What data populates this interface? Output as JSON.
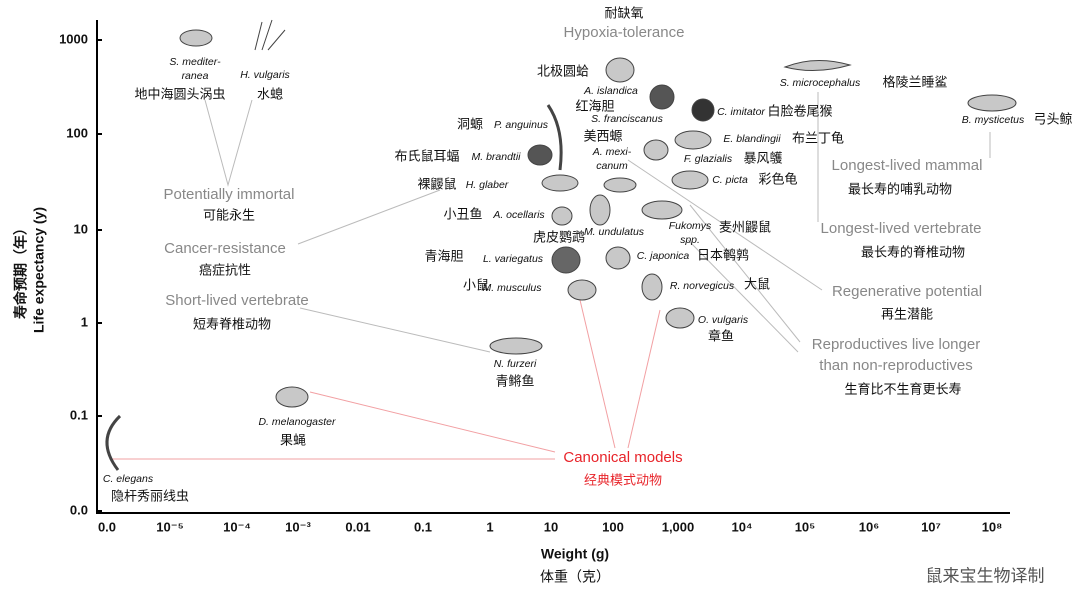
{
  "y_axis": {
    "title_zh": "寿命预期（年）",
    "title_en": "Life expectancy (y)",
    "ticks": [
      "1000",
      "100",
      "10",
      "1",
      "0.1",
      "0.0"
    ]
  },
  "x_axis": {
    "title_en": "Weight (g)",
    "title_zh": "体重（克）",
    "ticks": [
      "0.0",
      "10⁻⁵",
      "10⁻⁴",
      "10⁻³",
      "0.01",
      "0.1",
      "1",
      "10",
      "100",
      "1,000",
      "10⁴",
      "10⁵",
      "10⁶",
      "10⁷",
      "10⁸"
    ]
  },
  "groups": [
    {
      "en": [
        "Hypoxia-tolerance"
      ],
      "zh": "耐缺氧"
    },
    {
      "en": [
        "Potentially immortal"
      ],
      "zh": "可能永生"
    },
    {
      "en": [
        "Cancer-resistance"
      ],
      "zh": "癌症抗性"
    },
    {
      "en": [
        "Short-lived vertebrate"
      ],
      "zh": "短寿脊椎动物"
    },
    {
      "en": [
        "Longest-lived mammal"
      ],
      "zh": "最长寿的哺乳动物"
    },
    {
      "en": [
        "Longest-lived vertebrate"
      ],
      "zh": "最长寿的脊椎动物"
    },
    {
      "en": [
        "Regenerative potential"
      ],
      "zh": "再生潜能"
    },
    {
      "en": [
        "Reproductives live longer",
        "than non-reproductives"
      ],
      "zh": "生育比不生育更长寿"
    },
    {
      "en": [
        "Canonical models"
      ],
      "zh": "经典模式动物"
    }
  ],
  "species": [
    {
      "latin": [
        "S. mediter-",
        "ranea"
      ],
      "zh": "地中海圆头涡虫"
    },
    {
      "latin": [
        "H. vulgaris"
      ],
      "zh": "水螅"
    },
    {
      "latin": [
        "A. islandica"
      ],
      "zh": "北极圆蛤"
    },
    {
      "latin": [
        "S. franciscanus"
      ],
      "zh": "红海胆"
    },
    {
      "latin": [
        "C. imitator"
      ],
      "zh": "白脸卷尾猴"
    },
    {
      "latin": [
        "S. microcephalus"
      ],
      "zh": "格陵兰睡鲨"
    },
    {
      "latin": [
        "B. mysticetus"
      ],
      "zh": "弓头鲸"
    },
    {
      "latin": [
        "P. anguinus"
      ],
      "zh": "洞螈"
    },
    {
      "latin": [
        "A. mexi-",
        "canum"
      ],
      "zh": "美西螈"
    },
    {
      "latin": [
        "E. blandingii"
      ],
      "zh": "布兰丁龟"
    },
    {
      "latin": [
        "M. brandtii"
      ],
      "zh": "布氏鼠耳蝠"
    },
    {
      "latin": [
        "F. glazialis"
      ],
      "zh": "暴风鹱"
    },
    {
      "latin": [
        "C. picta"
      ],
      "zh": "彩色龟"
    },
    {
      "latin": [
        "H. glaber"
      ],
      "zh": "裸鼹鼠"
    },
    {
      "latin": [
        "A. ocellaris"
      ],
      "zh": "小丑鱼"
    },
    {
      "latin": [
        "Fukomys",
        "spp."
      ],
      "zh": "麦州鼹鼠"
    },
    {
      "latin": [
        "M. undulatus"
      ],
      "zh": "虎皮鹦鹉"
    },
    {
      "latin": [
        "L. variegatus"
      ],
      "zh": "青海胆"
    },
    {
      "latin": [
        "C. japonica"
      ],
      "zh": "日本鹌鹑"
    },
    {
      "latin": [
        "M. musculus"
      ],
      "zh": "小鼠"
    },
    {
      "latin": [
        "R. norvegicus"
      ],
      "zh": "大鼠"
    },
    {
      "latin": [
        "O. vulgaris"
      ],
      "zh": "章鱼"
    },
    {
      "latin": [
        "N. furzeri"
      ],
      "zh": "青鳉鱼"
    },
    {
      "latin": [
        "D. melanogaster"
      ],
      "zh": "果蝇"
    },
    {
      "latin": [
        "C. elegans"
      ],
      "zh": "隐杆秀丽线虫"
    }
  ],
  "watermark": "鼠来宝生物译制"
}
